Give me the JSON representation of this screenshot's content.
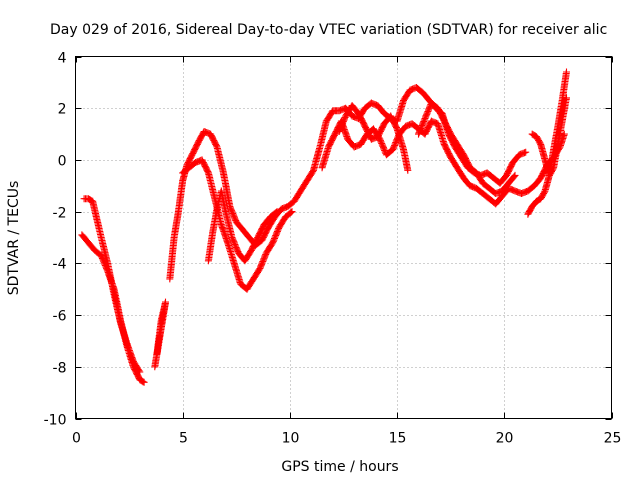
{
  "chart_data": {
    "type": "scatter",
    "title": "Day 029 of 2016, Sidereal Day-to-day VTEC variation (SDTVAR) for receiver alic",
    "xlabel": "GPS time / hours",
    "ylabel": "SDTVAR / TECUs",
    "xlim": [
      0,
      25
    ],
    "ylim": [
      -10,
      4
    ],
    "xticks": [
      0,
      5,
      10,
      15,
      20,
      25
    ],
    "yticks": [
      -10,
      -8,
      -6,
      -4,
      -2,
      0,
      2,
      4
    ],
    "grid": true,
    "marker": "+",
    "series": [
      {
        "name": "track-a",
        "color": "#ff0000",
        "points": [
          [
            0.3,
            -2.9
          ],
          [
            0.6,
            -3.2
          ],
          [
            0.9,
            -3.5
          ],
          [
            1.2,
            -3.7
          ],
          [
            1.5,
            -4.3
          ],
          [
            1.8,
            -5.0
          ],
          [
            2.1,
            -6.2
          ],
          [
            2.4,
            -7.2
          ],
          [
            2.7,
            -8.0
          ],
          [
            3.0,
            -8.5
          ],
          [
            3.2,
            -8.6
          ]
        ]
      },
      {
        "name": "track-b",
        "color": "#ff0000",
        "points": [
          [
            0.4,
            -1.5
          ],
          [
            0.6,
            -1.5
          ],
          [
            0.8,
            -1.6
          ],
          [
            1.0,
            -2.3
          ],
          [
            1.2,
            -3.0
          ],
          [
            1.5,
            -4.0
          ],
          [
            1.8,
            -5.2
          ],
          [
            2.1,
            -6.3
          ],
          [
            2.4,
            -7.1
          ],
          [
            2.7,
            -7.8
          ],
          [
            3.0,
            -8.2
          ]
        ]
      },
      {
        "name": "track-c",
        "color": "#ff0000",
        "points": [
          [
            3.7,
            -8.0
          ],
          [
            3.9,
            -7.0
          ],
          [
            4.0,
            -6.5
          ],
          [
            4.1,
            -6.0
          ],
          [
            4.2,
            -5.5
          ],
          [
            4.0,
            -6.2
          ],
          [
            3.8,
            -7.5
          ]
        ]
      },
      {
        "name": "track-d",
        "color": "#ff0000",
        "points": [
          [
            4.4,
            -4.6
          ],
          [
            4.6,
            -3.0
          ],
          [
            4.8,
            -2.0
          ],
          [
            5.0,
            -0.8
          ],
          [
            5.2,
            -0.2
          ],
          [
            5.5,
            0.3
          ],
          [
            5.8,
            0.8
          ],
          [
            6.0,
            1.1
          ],
          [
            6.3,
            1.0
          ],
          [
            6.6,
            0.5
          ],
          [
            6.9,
            -0.5
          ],
          [
            7.2,
            -1.8
          ],
          [
            7.5,
            -2.4
          ],
          [
            7.8,
            -2.7
          ],
          [
            8.1,
            -3.0
          ],
          [
            8.4,
            -3.3
          ],
          [
            8.7,
            -3.1
          ],
          [
            9.0,
            -2.6
          ],
          [
            9.3,
            -2.2
          ],
          [
            9.6,
            -1.9
          ],
          [
            9.9,
            -1.8
          ],
          [
            10.2,
            -1.6
          ],
          [
            10.5,
            -1.2
          ],
          [
            10.8,
            -0.8
          ],
          [
            11.1,
            -0.4
          ],
          [
            11.4,
            0.5
          ],
          [
            11.7,
            1.5
          ],
          [
            12.0,
            1.9
          ],
          [
            12.3,
            1.9
          ],
          [
            12.6,
            2.0
          ],
          [
            12.9,
            1.7
          ],
          [
            13.2,
            1.6
          ],
          [
            13.5,
            2.0
          ],
          [
            13.8,
            2.2
          ],
          [
            14.1,
            2.1
          ],
          [
            14.4,
            1.8
          ],
          [
            14.7,
            1.6
          ],
          [
            15.0,
            1.5
          ],
          [
            15.3,
            2.3
          ],
          [
            15.6,
            2.7
          ],
          [
            15.9,
            2.8
          ],
          [
            16.2,
            2.6
          ],
          [
            16.5,
            2.3
          ],
          [
            16.8,
            2.0
          ],
          [
            17.1,
            1.8
          ],
          [
            17.4,
            1.0
          ],
          [
            17.7,
            0.5
          ],
          [
            18.0,
            0.1
          ],
          [
            18.3,
            -0.3
          ],
          [
            18.6,
            -0.5
          ],
          [
            18.9,
            -0.6
          ],
          [
            19.2,
            -0.5
          ],
          [
            19.5,
            -0.7
          ],
          [
            19.8,
            -0.9
          ],
          [
            20.1,
            -0.6
          ],
          [
            20.4,
            -0.1
          ],
          [
            20.7,
            0.2
          ],
          [
            21.0,
            0.3
          ]
        ]
      },
      {
        "name": "track-e",
        "color": "#ff0000",
        "points": [
          [
            5.0,
            -0.5
          ],
          [
            5.3,
            -0.3
          ],
          [
            5.6,
            -0.1
          ],
          [
            5.9,
            0.0
          ],
          [
            6.2,
            -0.5
          ],
          [
            6.5,
            -1.5
          ],
          [
            6.8,
            -2.5
          ],
          [
            7.1,
            -3.2
          ],
          [
            7.4,
            -4.0
          ],
          [
            7.7,
            -4.8
          ],
          [
            8.0,
            -5.0
          ],
          [
            8.3,
            -4.6
          ],
          [
            8.6,
            -4.2
          ],
          [
            8.9,
            -3.6
          ],
          [
            9.2,
            -3.2
          ],
          [
            9.5,
            -2.6
          ],
          [
            9.8,
            -2.2
          ],
          [
            10.1,
            -2.0
          ]
        ]
      },
      {
        "name": "track-f",
        "color": "#ff0000",
        "points": [
          [
            6.2,
            -3.9
          ],
          [
            6.4,
            -2.8
          ],
          [
            6.6,
            -1.9
          ],
          [
            6.8,
            -1.2
          ],
          [
            7.0,
            -2.0
          ],
          [
            7.3,
            -3.0
          ],
          [
            7.6,
            -3.6
          ],
          [
            7.9,
            -3.9
          ],
          [
            8.2,
            -3.5
          ],
          [
            8.5,
            -3.0
          ],
          [
            8.8,
            -2.5
          ],
          [
            9.1,
            -2.2
          ],
          [
            9.4,
            -2.0
          ]
        ]
      },
      {
        "name": "track-g",
        "color": "#ff0000",
        "points": [
          [
            11.5,
            -0.3
          ],
          [
            11.8,
            0.5
          ],
          [
            12.1,
            1.0
          ],
          [
            12.4,
            1.5
          ],
          [
            12.7,
            0.8
          ],
          [
            13.0,
            0.5
          ],
          [
            13.3,
            0.6
          ],
          [
            13.6,
            1.0
          ],
          [
            13.9,
            1.2
          ],
          [
            14.2,
            0.8
          ],
          [
            14.5,
            0.2
          ],
          [
            14.8,
            0.4
          ],
          [
            15.1,
            1.0
          ],
          [
            15.4,
            1.3
          ],
          [
            15.7,
            1.4
          ],
          [
            16.0,
            1.2
          ],
          [
            16.3,
            1.0
          ],
          [
            16.6,
            1.5
          ],
          [
            16.9,
            1.4
          ],
          [
            17.2,
            0.6
          ],
          [
            17.5,
            0.1
          ],
          [
            17.8,
            -0.3
          ],
          [
            18.1,
            -0.7
          ],
          [
            18.4,
            -1.0
          ],
          [
            18.7,
            -1.1
          ],
          [
            19.0,
            -1.3
          ],
          [
            19.3,
            -1.5
          ],
          [
            19.6,
            -1.7
          ],
          [
            19.9,
            -1.4
          ],
          [
            20.2,
            -1.1
          ],
          [
            20.5,
            -1.2
          ],
          [
            20.8,
            -1.3
          ],
          [
            21.1,
            -1.2
          ],
          [
            21.4,
            -1.0
          ],
          [
            21.7,
            -0.7
          ],
          [
            22.0,
            -0.2
          ],
          [
            22.3,
            0.1
          ],
          [
            22.6,
            0.5
          ],
          [
            22.8,
            1.0
          ]
        ]
      },
      {
        "name": "track-h",
        "color": "#ff0000",
        "points": [
          [
            12.3,
            1.1
          ],
          [
            12.6,
            1.7
          ],
          [
            12.9,
            2.1
          ],
          [
            13.2,
            1.8
          ],
          [
            13.5,
            1.3
          ],
          [
            13.8,
            0.8
          ],
          [
            14.1,
            0.9
          ],
          [
            14.4,
            1.4
          ],
          [
            14.7,
            1.7
          ],
          [
            15.0,
            1.2
          ],
          [
            15.3,
            0.4
          ],
          [
            15.5,
            -0.4
          ]
        ]
      },
      {
        "name": "track-i",
        "color": "#ff0000",
        "points": [
          [
            16.0,
            1.0
          ],
          [
            16.3,
            1.6
          ],
          [
            16.6,
            2.2
          ],
          [
            16.9,
            2.0
          ],
          [
            17.2,
            1.5
          ],
          [
            17.5,
            1.0
          ],
          [
            17.8,
            0.6
          ],
          [
            18.1,
            0.2
          ],
          [
            18.4,
            -0.3
          ],
          [
            18.7,
            -0.5
          ],
          [
            19.0,
            -0.9
          ],
          [
            19.3,
            -1.1
          ],
          [
            19.6,
            -1.3
          ],
          [
            19.9,
            -1.2
          ],
          [
            20.2,
            -0.9
          ],
          [
            20.5,
            -0.6
          ]
        ]
      },
      {
        "name": "track-j",
        "color": "#ff0000",
        "points": [
          [
            21.1,
            -2.1
          ],
          [
            21.3,
            -1.8
          ],
          [
            21.5,
            -1.6
          ],
          [
            21.7,
            -1.5
          ],
          [
            21.9,
            -1.2
          ],
          [
            22.1,
            -0.6
          ],
          [
            22.3,
            0.4
          ],
          [
            22.5,
            1.3
          ],
          [
            22.7,
            2.3
          ],
          [
            22.9,
            3.4
          ]
        ]
      },
      {
        "name": "track-k",
        "color": "#ff0000",
        "points": [
          [
            21.3,
            1.0
          ],
          [
            21.5,
            0.9
          ],
          [
            21.7,
            0.6
          ],
          [
            21.9,
            0.0
          ],
          [
            22.1,
            -0.6
          ],
          [
            22.3,
            -0.3
          ],
          [
            22.5,
            0.6
          ],
          [
            22.7,
            1.5
          ],
          [
            22.9,
            2.4
          ]
        ]
      }
    ]
  }
}
